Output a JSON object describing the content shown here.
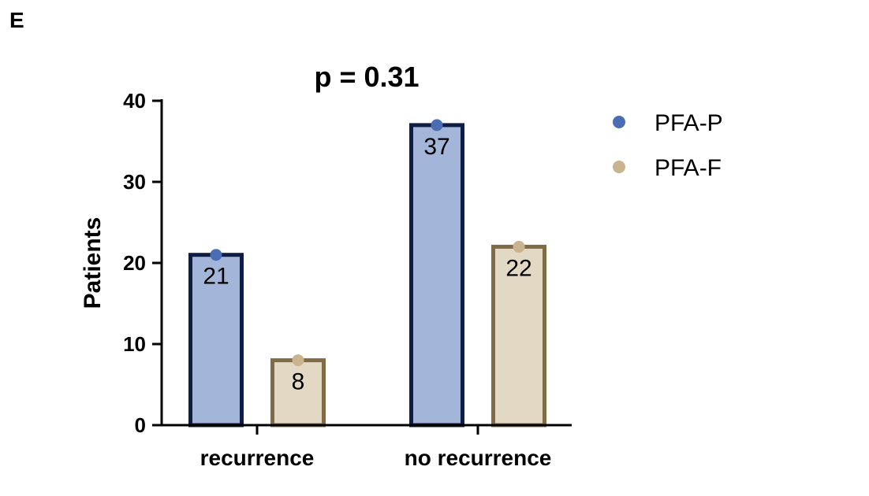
{
  "panel_letter": "E",
  "chart_data": {
    "type": "bar",
    "title": "p = 0.31",
    "xlabel": "",
    "ylabel": "Patients",
    "categories": [
      "recurrence",
      "no recurrence"
    ],
    "series": [
      {
        "name": "PFA-P",
        "values": [
          21,
          37
        ],
        "fill": "#a3b6d9",
        "stroke": "#0f1d44",
        "dot": "#4a6db3"
      },
      {
        "name": "PFA-F",
        "values": [
          8,
          22
        ],
        "fill": "#e3d8c3",
        "stroke": "#7f6c47",
        "dot": "#c9b48f"
      }
    ],
    "data_labels": [
      [
        "21",
        "37"
      ],
      [
        "8",
        "22"
      ]
    ],
    "ylim": [
      0,
      40
    ],
    "yticks": [
      "0",
      "10",
      "20",
      "30",
      "40"
    ],
    "grid": false,
    "legend_position": "right"
  }
}
